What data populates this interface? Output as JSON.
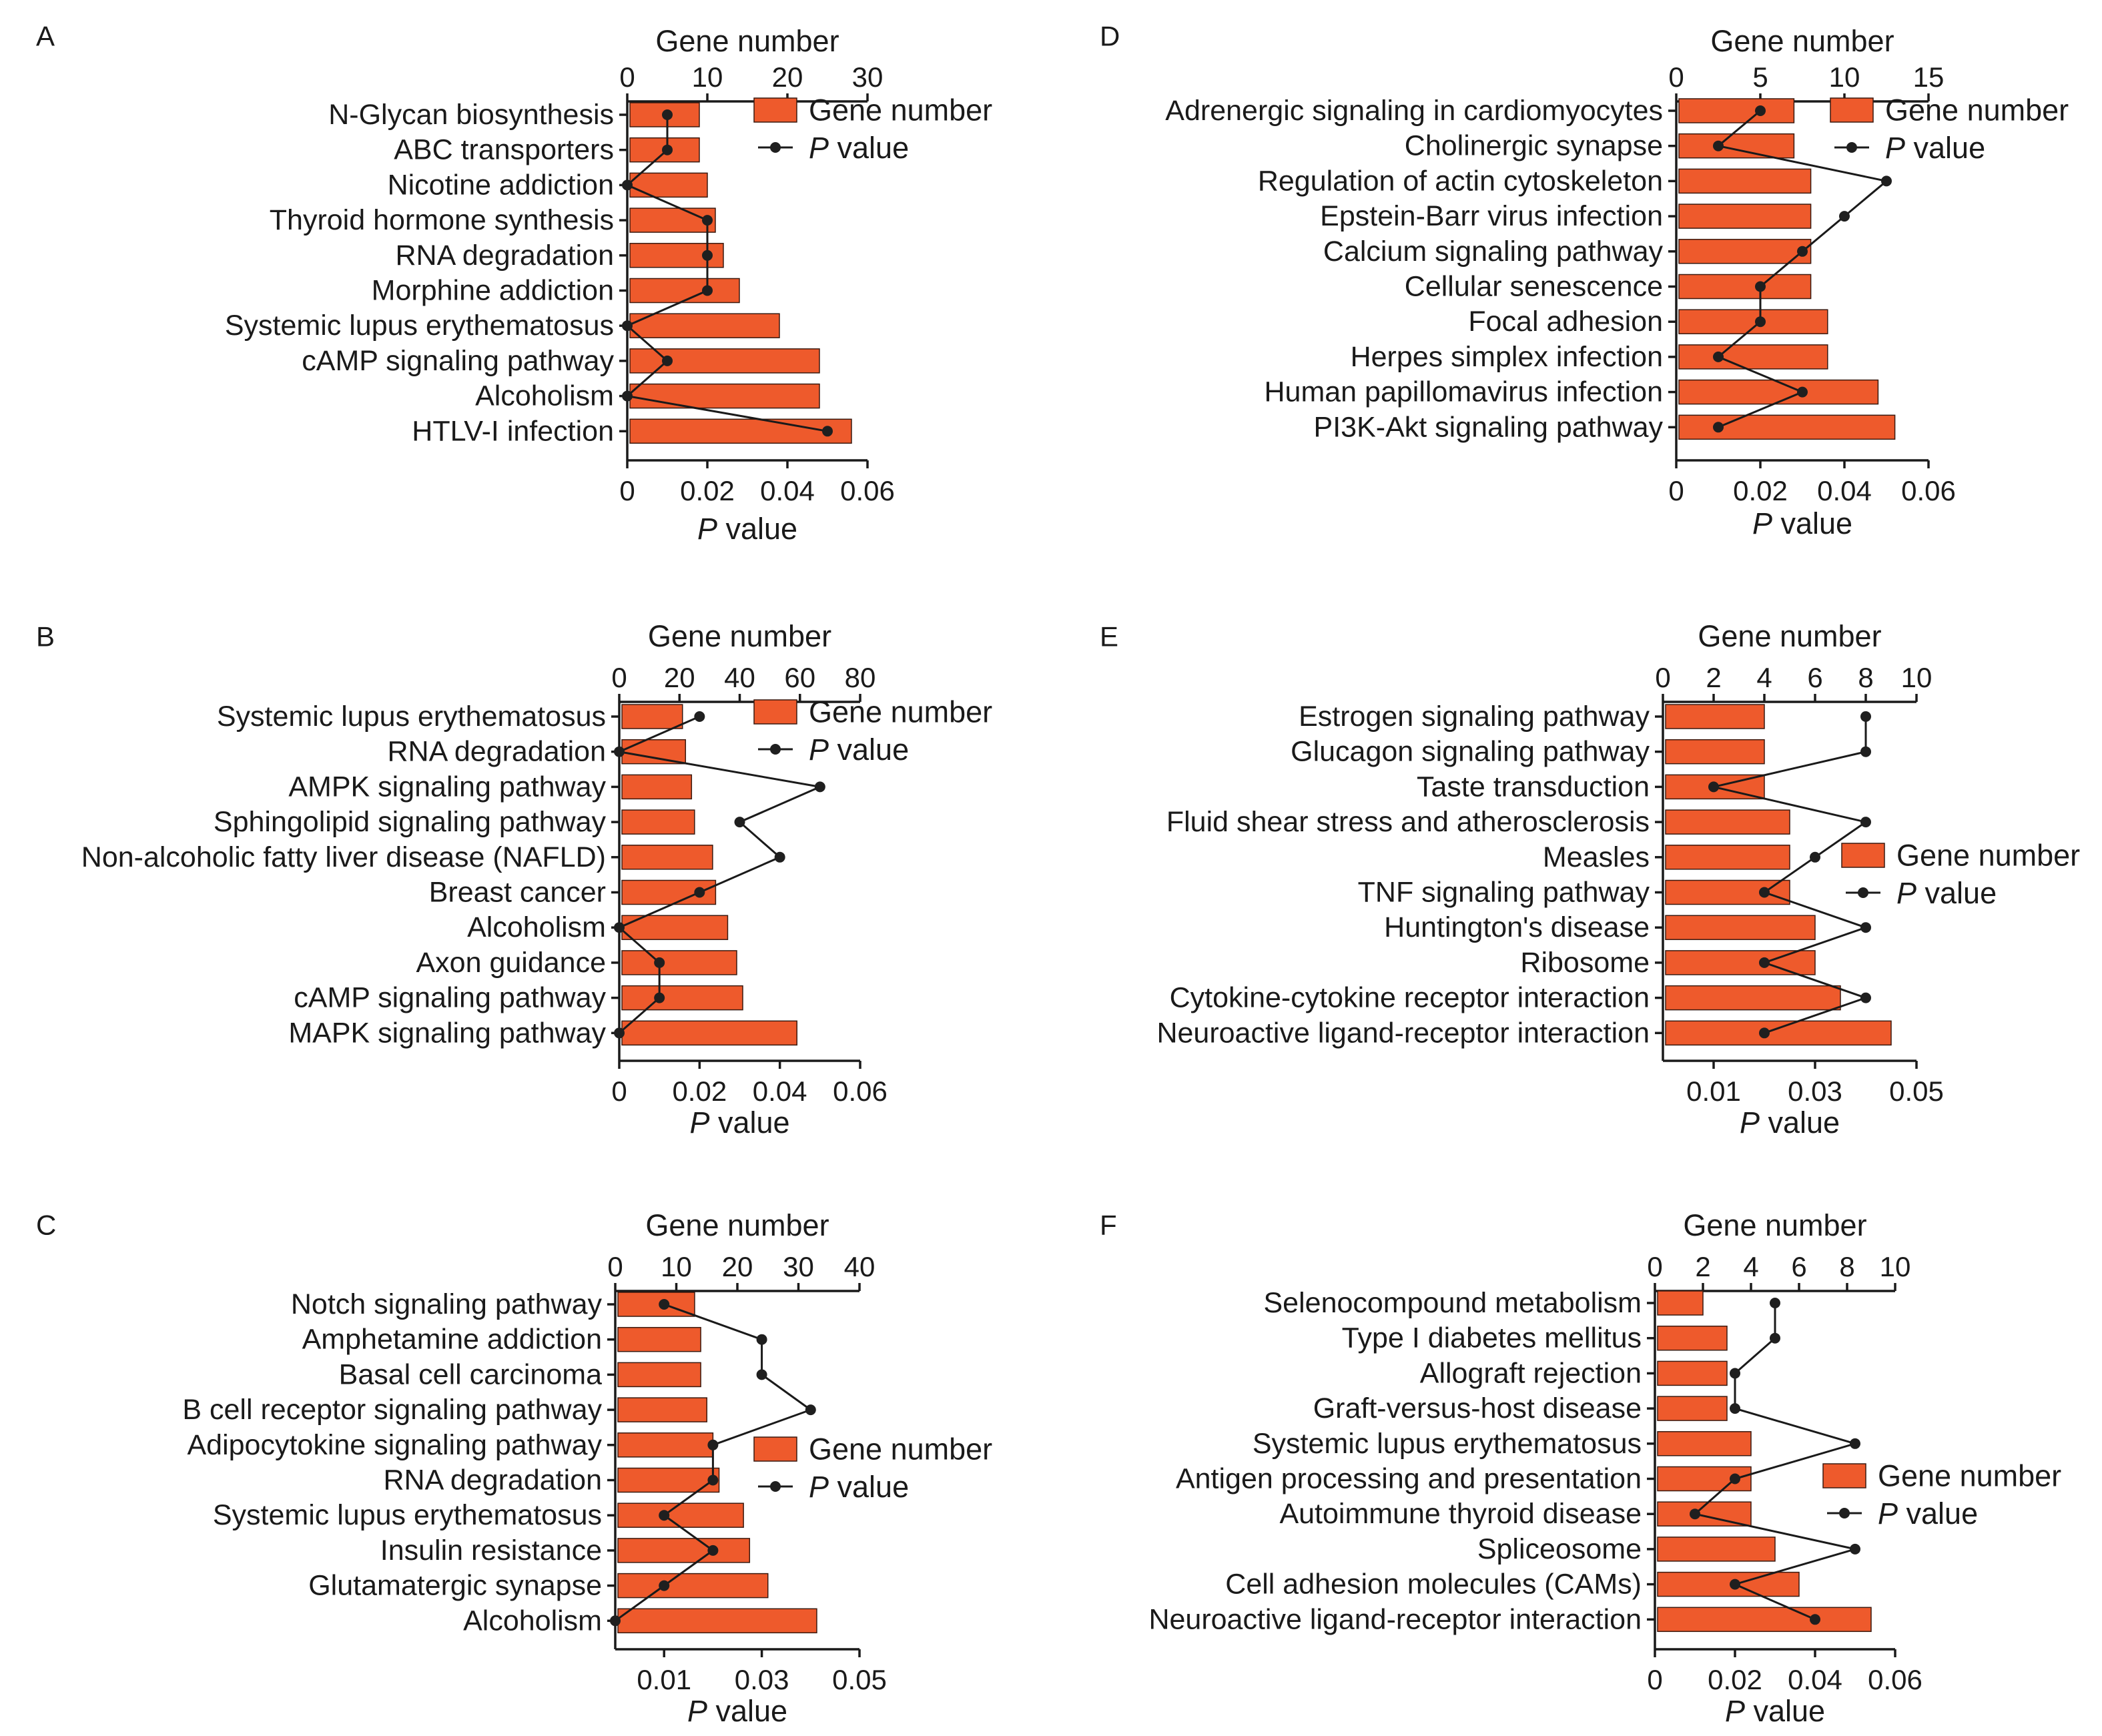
{
  "colors": {
    "bar": "#ee5a2c",
    "line": "#1a1a1a",
    "background": "#ffffff"
  },
  "legend": {
    "bar_label": "Gene number",
    "line_label_italic": "P",
    "line_label_rest": " value"
  },
  "chart_data": [
    {
      "panel": "A",
      "type": "bar",
      "top_axis": {
        "title": "Gene number",
        "min": 0,
        "max": 30,
        "ticks": [
          0,
          10,
          20,
          30
        ]
      },
      "bottom_axis": {
        "title_italic": "P",
        "title_rest": " value",
        "min": 0,
        "max": 0.06,
        "ticks": [
          0,
          0.02,
          0.04,
          0.06
        ],
        "tick_labels": [
          "0",
          "0.02",
          "0.04",
          "0.06"
        ]
      },
      "categories": [
        "N-Glycan biosynthesis",
        "ABC transporters",
        "Nicotine addiction",
        "Thyroid hormone synthesis",
        "RNA degradation",
        "Morphine addiction",
        "Systemic lupus erythematosus",
        "cAMP signaling pathway",
        "Alcoholism",
        "HTLV-I infection"
      ],
      "series": [
        {
          "name": "Gene number",
          "type": "bar",
          "values": [
            9,
            9,
            10,
            11,
            12,
            14,
            19,
            24,
            24,
            28
          ]
        },
        {
          "name": "P value",
          "type": "line",
          "values": [
            0.01,
            0.01,
            0,
            0.02,
            0.02,
            0.02,
            0,
            0.01,
            0,
            0.05
          ]
        }
      ],
      "legend_position": "top-right",
      "grid": false
    },
    {
      "panel": "B",
      "type": "bar",
      "top_axis": {
        "title": "Gene number",
        "min": 0,
        "max": 80,
        "ticks": [
          0,
          20,
          40,
          60,
          80
        ]
      },
      "bottom_axis": {
        "title_italic": "P",
        "title_rest": " value",
        "min": 0,
        "max": 0.06,
        "ticks": [
          0,
          0.02,
          0.04,
          0.06
        ],
        "tick_labels": [
          "0",
          "0.02",
          "0.04",
          "0.06"
        ]
      },
      "categories": [
        "Systemic lupus erythematosus",
        "RNA degradation",
        "AMPK signaling pathway",
        "Sphingolipid signaling pathway",
        "Non-alcoholic fatty liver disease (NAFLD)",
        "Breast cancer",
        "Alcoholism",
        "Axon guidance",
        "cAMP signaling pathway",
        "MAPK signaling pathway"
      ],
      "series": [
        {
          "name": "Gene number",
          "type": "bar",
          "values": [
            21,
            22,
            24,
            25,
            31,
            32,
            36,
            39,
            41,
            59
          ]
        },
        {
          "name": "P value",
          "type": "line",
          "values": [
            0.02,
            0,
            0.05,
            0.03,
            0.04,
            0.02,
            0,
            0.01,
            0.01,
            0
          ]
        }
      ],
      "legend_position": "top-right",
      "grid": false
    },
    {
      "panel": "C",
      "type": "bar",
      "top_axis": {
        "title": "Gene number",
        "min": 0,
        "max": 40,
        "ticks": [
          0,
          10,
          20,
          30,
          40
        ]
      },
      "bottom_axis": {
        "title_italic": "P",
        "title_rest": " value",
        "min": 0,
        "max": 0.05,
        "ticks": [
          0.01,
          0.03,
          0.05
        ],
        "tick_labels": [
          "0.01",
          "0.03",
          "0.05"
        ]
      },
      "categories": [
        "Notch signaling pathway",
        "Amphetamine addiction",
        "Basal cell carcinoma",
        "B cell receptor signaling pathway",
        "Adipocytokine signaling pathway",
        "RNA degradation",
        "Systemic lupus erythematosus",
        "Insulin resistance",
        "Glutamatergic synapse",
        "Alcoholism"
      ],
      "series": [
        {
          "name": "Gene number",
          "type": "bar",
          "values": [
            13,
            14,
            14,
            15,
            16,
            17,
            21,
            22,
            25,
            33
          ]
        },
        {
          "name": "P value",
          "type": "line",
          "values": [
            0.01,
            0.03,
            0.03,
            0.04,
            0.02,
            0.02,
            0.01,
            0.02,
            0.01,
            0
          ]
        }
      ],
      "legend_position": "right",
      "grid": false
    },
    {
      "panel": "D",
      "type": "bar",
      "top_axis": {
        "title": "Gene number",
        "min": 0,
        "max": 15,
        "ticks": [
          0,
          5,
          10,
          15
        ]
      },
      "bottom_axis": {
        "title_italic": "P",
        "title_rest": " value",
        "min": 0,
        "max": 0.06,
        "ticks": [
          0,
          0.02,
          0.04,
          0.06
        ],
        "tick_labels": [
          "0",
          "0.02",
          "0.04",
          "0.06"
        ]
      },
      "categories": [
        "Adrenergic signaling in cardiomyocytes",
        "Cholinergic synapse",
        "Regulation of actin cytoskeleton",
        "Epstein-Barr virus infection",
        "Calcium signaling pathway",
        "Cellular senescence",
        "Focal adhesion",
        "Herpes simplex infection",
        "Human papillomavirus infection",
        "PI3K-Akt signaling pathway"
      ],
      "series": [
        {
          "name": "Gene number",
          "type": "bar",
          "values": [
            7,
            7,
            8,
            8,
            8,
            8,
            9,
            9,
            12,
            13
          ]
        },
        {
          "name": "P value",
          "type": "line",
          "values": [
            0.02,
            0.01,
            0.05,
            0.04,
            0.03,
            0.02,
            0.02,
            0.01,
            0.03,
            0.01
          ]
        }
      ],
      "legend_position": "top-right",
      "grid": false
    },
    {
      "panel": "E",
      "type": "bar",
      "top_axis": {
        "title": "Gene number",
        "min": 0,
        "max": 10,
        "ticks": [
          0,
          2,
          4,
          6,
          8,
          10
        ]
      },
      "bottom_axis": {
        "title_italic": "P",
        "title_rest": " value",
        "min": 0,
        "max": 0.05,
        "ticks": [
          0.01,
          0.03,
          0.05
        ],
        "tick_labels": [
          "0.01",
          "0.03",
          "0.05"
        ]
      },
      "categories": [
        "Estrogen signaling pathway",
        "Glucagon signaling pathway",
        "Taste transduction",
        "Fluid shear stress and atherosclerosis",
        "Measles",
        "TNF signaling pathway",
        "Huntington's disease",
        "Ribosome",
        "Cytokine-cytokine receptor interaction",
        "Neuroactive ligand-receptor interaction"
      ],
      "series": [
        {
          "name": "Gene number",
          "type": "bar",
          "values": [
            4,
            4,
            4,
            5,
            5,
            5,
            6,
            6,
            7,
            9
          ]
        },
        {
          "name": "P value",
          "type": "line",
          "values": [
            0.04,
            0.04,
            0.01,
            0.04,
            0.03,
            0.02,
            0.04,
            0.02,
            0.04,
            0.02
          ]
        }
      ],
      "legend_position": "right",
      "grid": false
    },
    {
      "panel": "F",
      "type": "bar",
      "top_axis": {
        "title": "Gene number",
        "min": 0,
        "max": 10,
        "ticks": [
          0,
          2,
          4,
          6,
          8,
          10
        ]
      },
      "bottom_axis": {
        "title_italic": "P",
        "title_rest": " value",
        "min": 0,
        "max": 0.06,
        "ticks": [
          0,
          0.02,
          0.04,
          0.06
        ],
        "tick_labels": [
          "0",
          "0.02",
          "0.04",
          "0.06"
        ]
      },
      "categories": [
        "Selenocompound metabolism",
        "Type I diabetes mellitus",
        "Allograft rejection",
        "Graft-versus-host disease",
        "Systemic lupus erythematosus",
        "Antigen processing and presentation",
        "Autoimmune thyroid disease",
        "Spliceosome",
        "Cell adhesion molecules (CAMs)",
        "Neuroactive ligand-receptor interaction"
      ],
      "series": [
        {
          "name": "Gene number",
          "type": "bar",
          "values": [
            2,
            3,
            3,
            3,
            4,
            4,
            4,
            5,
            6,
            9
          ]
        },
        {
          "name": "P value",
          "type": "line",
          "values": [
            0.03,
            0.03,
            0.02,
            0.02,
            0.05,
            0.02,
            0.01,
            0.05,
            0.02,
            0.04
          ]
        }
      ],
      "legend_position": "right",
      "grid": false
    }
  ]
}
